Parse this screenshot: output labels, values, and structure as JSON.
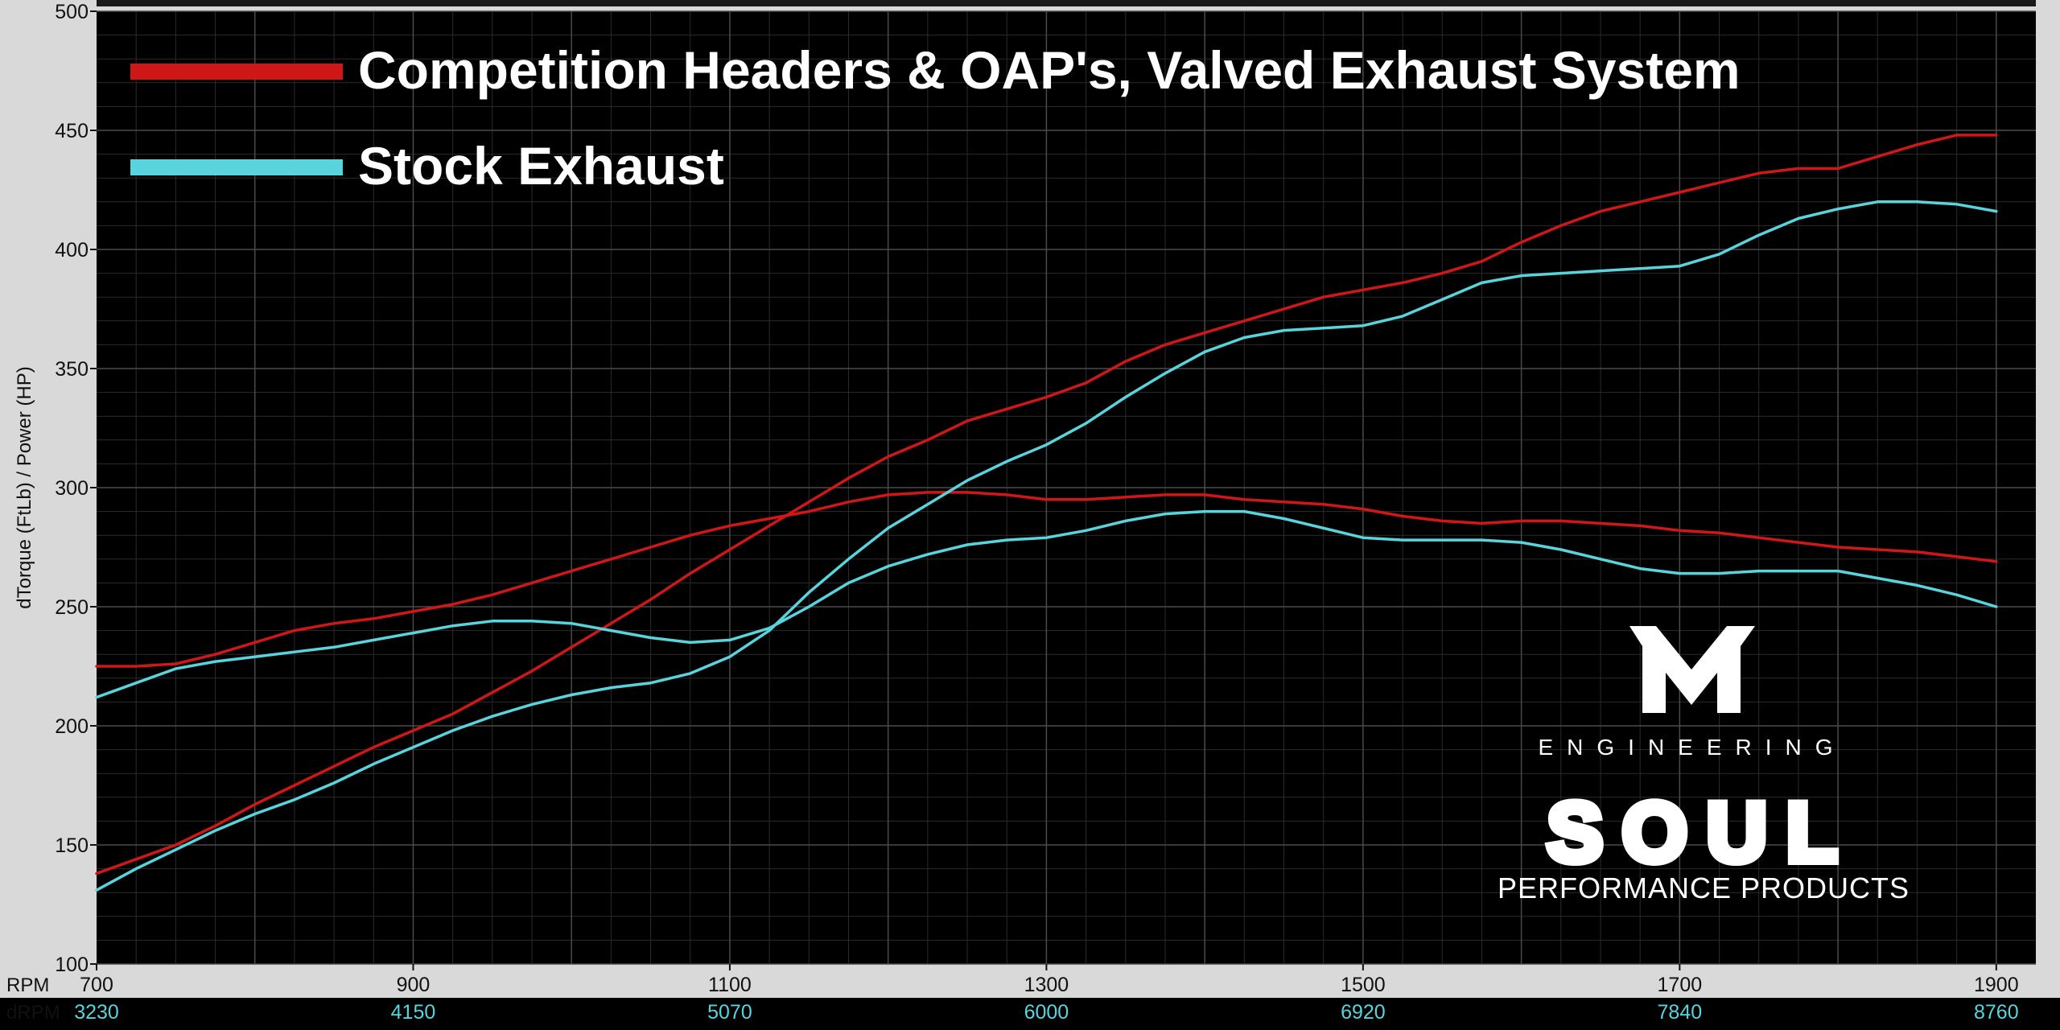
{
  "chart_data": {
    "type": "line",
    "title": "",
    "xlabel": "RPM",
    "x2label": "dRPM",
    "ylabel": "dTorque (FtLb) / Power (HP)",
    "xlim": [
      700,
      1925
    ],
    "ylim": [
      100,
      500
    ],
    "x_ticks": [
      700,
      900,
      1100,
      1300,
      1500,
      1700,
      1900
    ],
    "x2_ticks": [
      "3230",
      "4150",
      "5070",
      "6000",
      "6920",
      "7840",
      "8760"
    ],
    "y_ticks": [
      100,
      150,
      200,
      250,
      300,
      350,
      400,
      450,
      500
    ],
    "grid": true,
    "legend_position": "top-left",
    "series": [
      {
        "name": "Competition Headers & OAP's, Valved Exhaust System",
        "color": "#d01717",
        "curves": [
          {
            "measure": "torque",
            "x": [
              700,
              725,
              750,
              775,
              800,
              825,
              850,
              875,
              900,
              925,
              950,
              975,
              1000,
              1025,
              1050,
              1075,
              1100,
              1125,
              1150,
              1175,
              1200,
              1225,
              1250,
              1275,
              1300,
              1325,
              1350,
              1375,
              1400,
              1425,
              1450,
              1475,
              1500,
              1525,
              1550,
              1575,
              1600,
              1625,
              1650,
              1675,
              1700,
              1725,
              1750,
              1775,
              1800,
              1825,
              1850,
              1875,
              1900
            ],
            "y": [
              225,
              225,
              226,
              230,
              235,
              240,
              243,
              245,
              248,
              251,
              255,
              260,
              265,
              270,
              275,
              280,
              284,
              287,
              290,
              294,
              297,
              298,
              298,
              297,
              295,
              295,
              296,
              297,
              297,
              295,
              294,
              293,
              291,
              288,
              286,
              285,
              286,
              286,
              285,
              284,
              282,
              281,
              279,
              277,
              275,
              274,
              273,
              271,
              269
            ]
          },
          {
            "measure": "power",
            "x": [
              700,
              725,
              750,
              775,
              800,
              825,
              850,
              875,
              900,
              925,
              950,
              975,
              1000,
              1025,
              1050,
              1075,
              1100,
              1125,
              1150,
              1175,
              1200,
              1225,
              1250,
              1275,
              1300,
              1325,
              1350,
              1375,
              1400,
              1425,
              1450,
              1475,
              1500,
              1525,
              1550,
              1575,
              1600,
              1625,
              1650,
              1675,
              1700,
              1725,
              1750,
              1775,
              1800,
              1825,
              1850,
              1875,
              1900
            ],
            "y": [
              138,
              144,
              150,
              158,
              167,
              175,
              183,
              191,
              198,
              205,
              214,
              223,
              233,
              243,
              253,
              264,
              274,
              284,
              294,
              304,
              313,
              320,
              328,
              333,
              338,
              344,
              353,
              360,
              365,
              370,
              375,
              380,
              383,
              386,
              390,
              395,
              403,
              410,
              416,
              420,
              424,
              428,
              432,
              434,
              434,
              439,
              444,
              448,
              448
            ]
          }
        ]
      },
      {
        "name": "Stock Exhaust",
        "color": "#59d3dc",
        "curves": [
          {
            "measure": "torque",
            "x": [
              700,
              725,
              750,
              775,
              800,
              825,
              850,
              875,
              900,
              925,
              950,
              975,
              1000,
              1025,
              1050,
              1075,
              1100,
              1125,
              1150,
              1175,
              1200,
              1225,
              1250,
              1275,
              1300,
              1325,
              1350,
              1375,
              1400,
              1425,
              1450,
              1475,
              1500,
              1525,
              1550,
              1575,
              1600,
              1625,
              1650,
              1675,
              1700,
              1725,
              1750,
              1775,
              1800,
              1825,
              1850,
              1875,
              1900
            ],
            "y": [
              212,
              218,
              224,
              227,
              229,
              231,
              233,
              236,
              239,
              242,
              244,
              244,
              243,
              240,
              237,
              235,
              236,
              241,
              250,
              260,
              267,
              272,
              276,
              278,
              279,
              282,
              286,
              289,
              290,
              290,
              287,
              283,
              279,
              278,
              278,
              278,
              277,
              274,
              270,
              266,
              264,
              264,
              265,
              265,
              265,
              262,
              259,
              255,
              250
            ]
          },
          {
            "measure": "power",
            "x": [
              700,
              725,
              750,
              775,
              800,
              825,
              850,
              875,
              900,
              925,
              950,
              975,
              1000,
              1025,
              1050,
              1075,
              1100,
              1125,
              1150,
              1175,
              1200,
              1225,
              1250,
              1275,
              1300,
              1325,
              1350,
              1375,
              1400,
              1425,
              1450,
              1475,
              1500,
              1525,
              1550,
              1575,
              1600,
              1625,
              1650,
              1675,
              1700,
              1725,
              1750,
              1775,
              1800,
              1825,
              1850,
              1875,
              1900
            ],
            "y": [
              131,
              140,
              148,
              156,
              163,
              169,
              176,
              184,
              191,
              198,
              204,
              209,
              213,
              216,
              218,
              222,
              229,
              240,
              256,
              270,
              283,
              293,
              303,
              311,
              318,
              327,
              338,
              348,
              357,
              363,
              366,
              367,
              368,
              372,
              379,
              386,
              389,
              390,
              391,
              392,
              393,
              398,
              406,
              413,
              417,
              420,
              420,
              419,
              416
            ]
          }
        ]
      }
    ]
  },
  "logo": {
    "letter": "M",
    "subtitle": "ENGINEERING",
    "brand": "SOUL",
    "tagline": "PERFORMANCE PRODUCTS"
  }
}
